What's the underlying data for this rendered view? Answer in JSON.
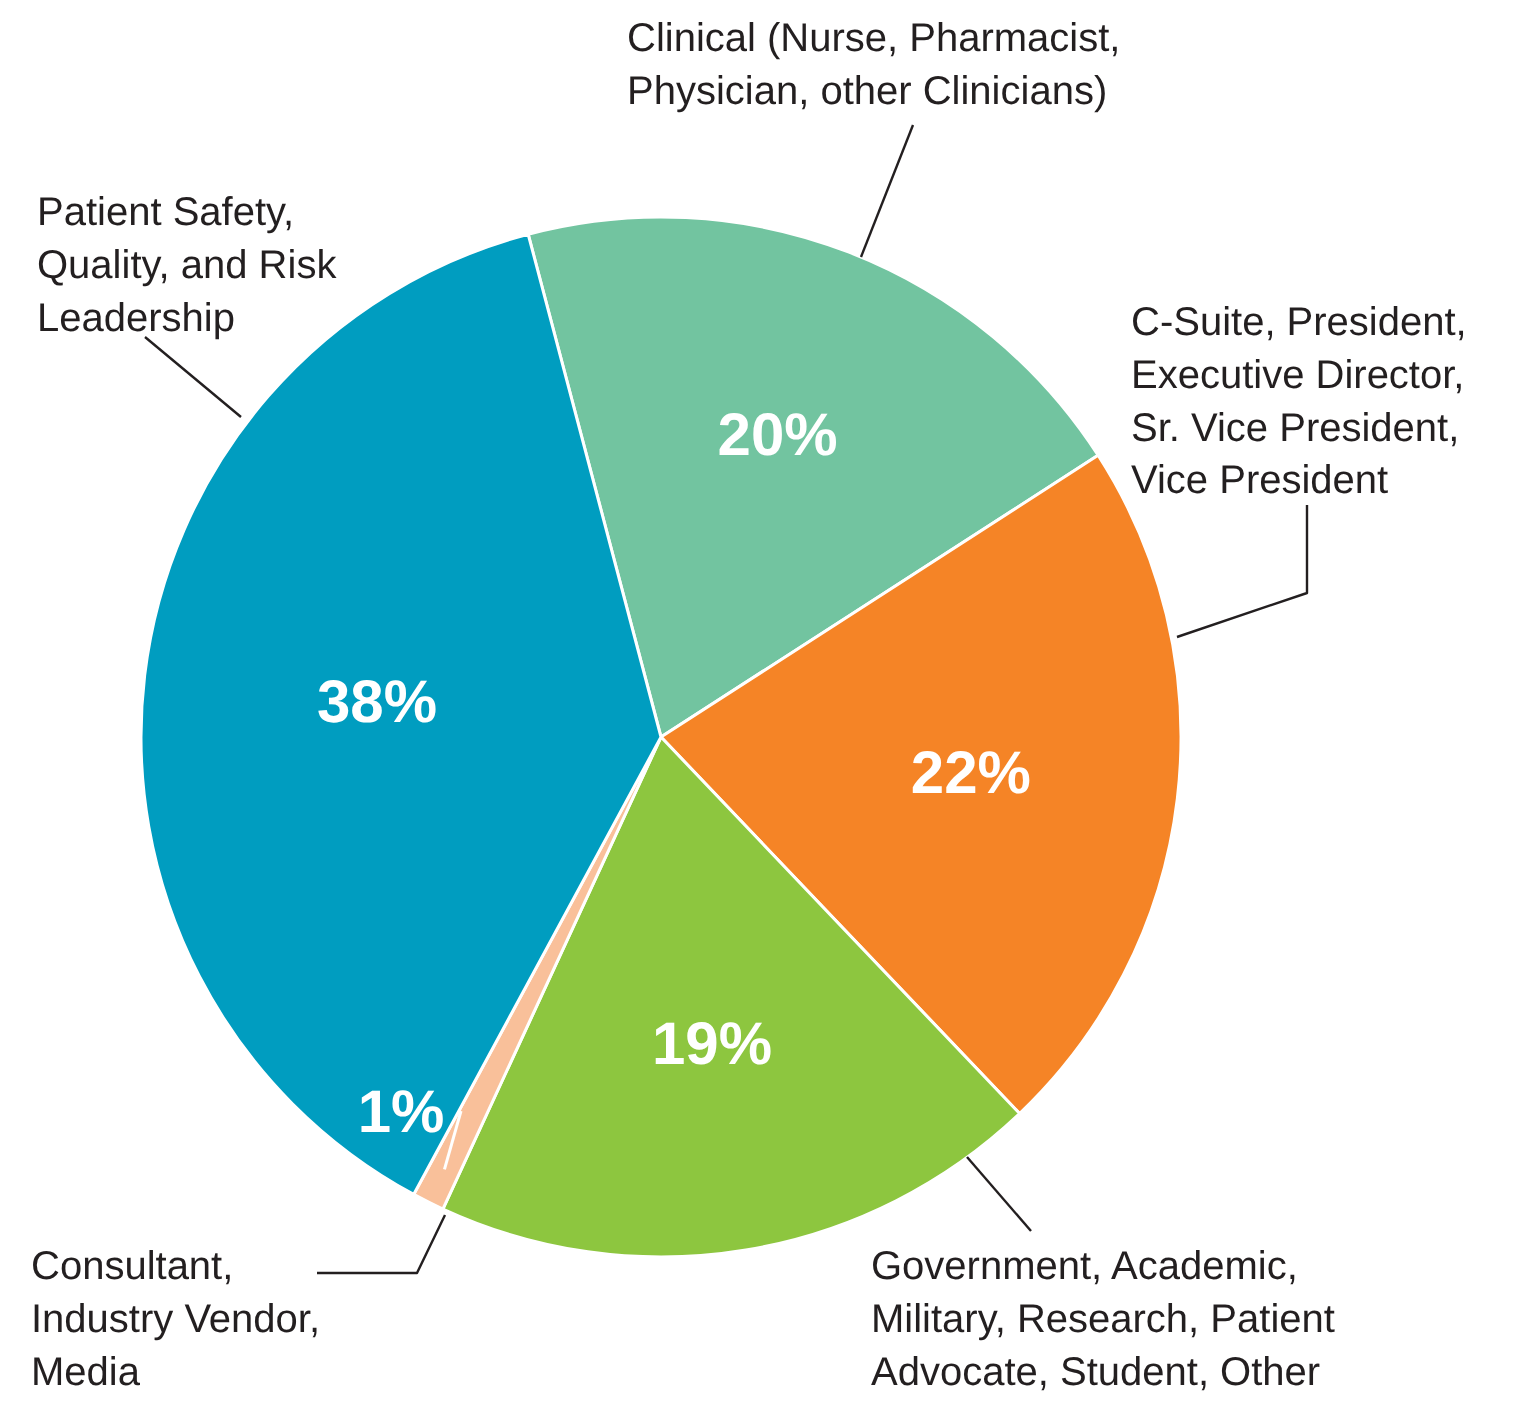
{
  "chart_data": {
    "type": "pie",
    "categories": [
      "Clinical (Nurse, Pharmacist, Physician, other Clinicians)",
      "C-Suite, President, Executive Director, Sr. Vice President, Vice President",
      "Government, Academic, Military, Research, Patient Advocate, Student, Other",
      "Consultant, Industry Vendor, Media",
      "Patient Safety, Quality, and Risk Leadership"
    ],
    "values": [
      20,
      22,
      19,
      1,
      38
    ],
    "value_labels": [
      "20%",
      "22%",
      "19%",
      "1%",
      "38%"
    ],
    "colors": [
      "#72c4a0",
      "#f58426",
      "#8dc63f",
      "#f9c09a",
      "#009dc0"
    ]
  }
}
